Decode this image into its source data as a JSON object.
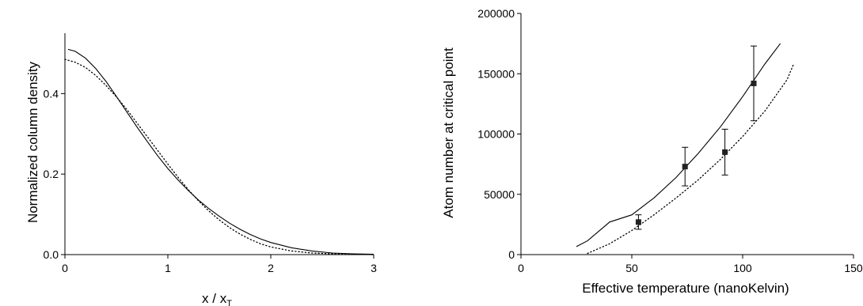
{
  "chart_data": [
    {
      "type": "line",
      "xlabel": "x / x",
      "xlabel_subscript": "T",
      "ylabel": "Normalized column density",
      "xlim": [
        0,
        3
      ],
      "ylim": [
        0,
        0.55
      ],
      "x_ticks": [
        0,
        1,
        2,
        3
      ],
      "x_tick_labels": [
        "0",
        "1",
        "2",
        "3"
      ],
      "y_ticks": [
        0.0,
        0.2,
        0.4
      ],
      "y_tick_labels": [
        "0.0",
        "0.2",
        "0.4"
      ],
      "grid": false,
      "series": [
        {
          "style": "solid",
          "x": [
            0.03,
            0.1,
            0.2,
            0.3,
            0.4,
            0.5,
            0.6,
            0.7,
            0.8,
            0.9,
            1.0,
            1.1,
            1.2,
            1.3,
            1.4,
            1.5,
            1.6,
            1.7,
            1.8,
            1.9,
            2.0,
            2.2,
            2.4,
            2.6,
            2.8,
            3.0
          ],
          "y": [
            0.51,
            0.505,
            0.488,
            0.462,
            0.43,
            0.393,
            0.355,
            0.317,
            0.281,
            0.246,
            0.214,
            0.185,
            0.159,
            0.135,
            0.114,
            0.095,
            0.078,
            0.063,
            0.05,
            0.039,
            0.03,
            0.017,
            0.009,
            0.004,
            0.002,
            0.001
          ]
        },
        {
          "style": "dotted",
          "x": [
            0.0,
            0.1,
            0.2,
            0.3,
            0.4,
            0.5,
            0.6,
            0.7,
            0.8,
            0.9,
            1.0,
            1.1,
            1.2,
            1.3,
            1.4,
            1.5,
            1.6,
            1.7,
            1.8,
            1.9,
            2.0,
            2.2,
            2.4,
            2.6,
            2.8,
            3.0
          ],
          "y": [
            0.485,
            0.478,
            0.465,
            0.445,
            0.42,
            0.392,
            0.361,
            0.327,
            0.293,
            0.259,
            0.225,
            0.192,
            0.161,
            0.133,
            0.108,
            0.086,
            0.067,
            0.051,
            0.038,
            0.027,
            0.019,
            0.009,
            0.004,
            0.002,
            0.001,
            0.0
          ]
        }
      ]
    },
    {
      "type": "scatter",
      "xlabel": "Effective temperature (nanoKelvin)",
      "ylabel": "Atom number at critical point",
      "xlim": [
        0,
        150
      ],
      "ylim": [
        0,
        200000
      ],
      "x_ticks": [
        0,
        50,
        100,
        150
      ],
      "x_tick_labels": [
        "0",
        "50",
        "100",
        "150"
      ],
      "y_ticks": [
        0,
        50000,
        100000,
        150000,
        200000
      ],
      "y_tick_labels": [
        "0",
        "50000",
        "100000",
        "150000",
        "200000"
      ],
      "grid": false,
      "points": {
        "marker": "square",
        "x": [
          53,
          74,
          92,
          105
        ],
        "y": [
          27000,
          73000,
          85000,
          142000
        ],
        "err": [
          6000,
          16000,
          19000,
          31000
        ]
      },
      "series": [
        {
          "style": "solid",
          "x": [
            25,
            30,
            40,
            50,
            60,
            70,
            80,
            90,
            100,
            110,
            117
          ],
          "y": [
            6600,
            11400,
            27000,
            33000,
            47000,
            64000,
            84000,
            106000,
            131000,
            158000,
            175000
          ]
        },
        {
          "style": "dotted",
          "x": [
            30,
            40,
            50,
            60,
            70,
            80,
            90,
            100,
            110,
            120,
            123
          ],
          "y": [
            1000,
            9000,
            20000,
            33000,
            47000,
            62000,
            79000,
            98000,
            119000,
            145000,
            158000
          ]
        }
      ]
    }
  ]
}
